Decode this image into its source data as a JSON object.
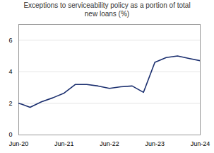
{
  "chart_data": {
    "type": "line",
    "title": "Exceptions to serviceability policy as a portion of total\nnew loans (%)",
    "x": [
      0,
      0.25,
      1,
      2,
      3,
      4,
      5,
      6,
      7,
      8,
      9,
      10,
      11,
      12,
      13,
      14,
      15,
      16
    ],
    "values": [
      2.0,
      1.95,
      1.75,
      2.1,
      2.35,
      2.65,
      3.2,
      3.2,
      3.1,
      2.95,
      3.05,
      3.1,
      2.7,
      4.6,
      4.9,
      5.0,
      4.85,
      4.7
    ],
    "color": "#1a2e6e",
    "xlim": [
      0,
      16
    ],
    "xticks": [
      {
        "value": 0,
        "label": "Jun-20"
      },
      {
        "value": 4,
        "label": "Jun-21"
      },
      {
        "value": 8,
        "label": "Jun-22"
      },
      {
        "value": 12,
        "label": "Jun-23"
      },
      {
        "value": 16,
        "label": "Jun-24"
      }
    ],
    "ylim": [
      0,
      7
    ],
    "yticks": [
      0,
      2,
      4,
      6
    ],
    "grid": true
  }
}
